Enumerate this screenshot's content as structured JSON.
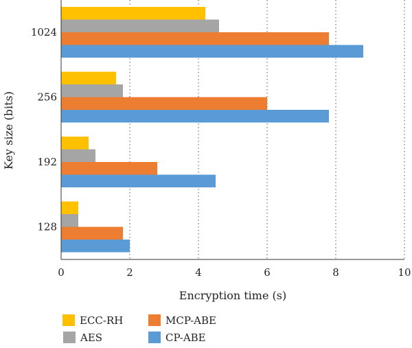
{
  "chart_data": {
    "type": "bar",
    "orientation": "horizontal",
    "categories": [
      "128",
      "192",
      "256",
      "1024"
    ],
    "series": [
      {
        "name": "ECC-RH",
        "color": "#FFC000",
        "values": [
          0.5,
          0.8,
          1.6,
          4.2
        ]
      },
      {
        "name": "AES",
        "color": "#A5A5A5",
        "values": [
          0.5,
          1.0,
          1.8,
          4.6
        ]
      },
      {
        "name": "MCP-ABE",
        "color": "#ED7D31",
        "values": [
          1.8,
          2.8,
          6.0,
          7.8
        ]
      },
      {
        "name": "CP-ABE",
        "color": "#5B9BD5",
        "values": [
          2.0,
          4.5,
          7.8,
          8.8
        ]
      }
    ],
    "xlabel": "Encryption time (s)",
    "ylabel": "Key size (bits)",
    "xlim": [
      0,
      10
    ],
    "xticks": [
      "0",
      "2",
      "4",
      "6",
      "8",
      "10"
    ],
    "grid": "vertical dotted",
    "legend_position": "bottom"
  }
}
